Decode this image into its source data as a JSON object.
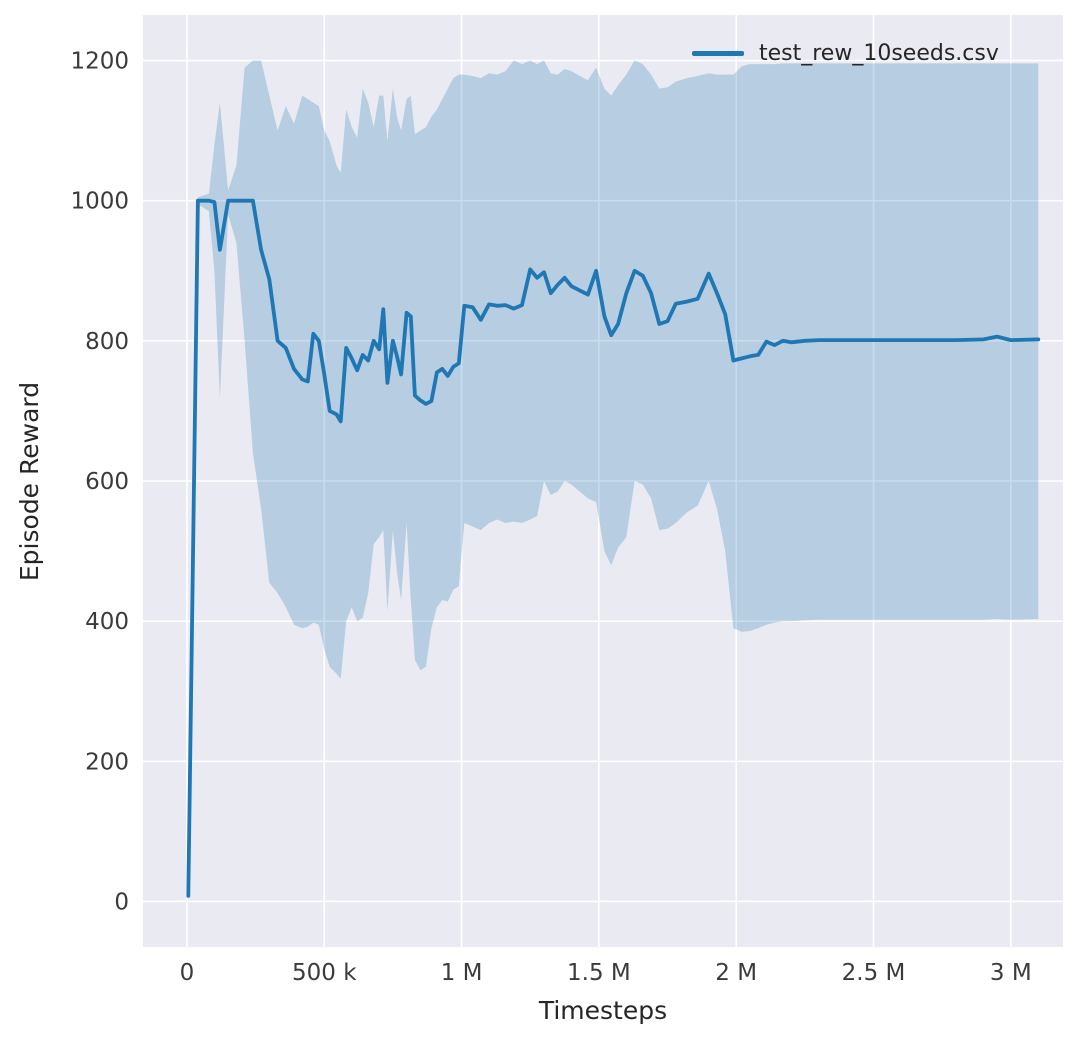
{
  "chart_data": {
    "type": "line",
    "title": "",
    "xlabel": "Timesteps",
    "ylabel": "Episode Reward",
    "grid": true,
    "legend": {
      "position": "upper right",
      "entries": [
        {
          "label": "test_rew_10seeds.csv",
          "color": "#1f77b4"
        }
      ]
    },
    "xlim": [
      -160000,
      3190000
    ],
    "ylim": [
      -65,
      1265
    ],
    "xticks": {
      "values": [
        0,
        500000,
        1000000,
        1500000,
        2000000,
        2500000,
        3000000
      ],
      "labels": [
        "0",
        "500 k",
        "1 M",
        "1.5 M",
        "2 M",
        "2.5 M",
        "3 M"
      ]
    },
    "yticks": {
      "values": [
        0,
        200,
        400,
        600,
        800,
        1000,
        1200
      ],
      "labels": [
        "0",
        "200",
        "400",
        "600",
        "800",
        "1000",
        "1200"
      ]
    },
    "colors": {
      "line": "#1f77b4",
      "band": "#1f77b4",
      "band_opacity": 0.25,
      "plot_background": "#eaeaf2",
      "grid": "#ffffff",
      "tick_text": "#3b3b3b",
      "label_text": "#262626"
    },
    "series": [
      {
        "name": "test_rew_10seeds.csv",
        "x": [
          5000,
          40000,
          80000,
          100000,
          120000,
          150000,
          180000,
          210000,
          240000,
          270000,
          300000,
          330000,
          360000,
          390000,
          420000,
          440000,
          460000,
          480000,
          500000,
          520000,
          545000,
          560000,
          580000,
          600000,
          620000,
          640000,
          660000,
          680000,
          700000,
          715000,
          730000,
          750000,
          765000,
          780000,
          800000,
          815000,
          830000,
          850000,
          870000,
          890000,
          910000,
          930000,
          950000,
          970000,
          990000,
          1010000,
          1040000,
          1070000,
          1100000,
          1130000,
          1160000,
          1190000,
          1220000,
          1250000,
          1275000,
          1300000,
          1325000,
          1350000,
          1375000,
          1400000,
          1430000,
          1460000,
          1490000,
          1520000,
          1545000,
          1570000,
          1600000,
          1630000,
          1660000,
          1690000,
          1720000,
          1750000,
          1780000,
          1820000,
          1860000,
          1900000,
          1930000,
          1960000,
          1990000,
          2020000,
          2050000,
          2080000,
          2110000,
          2140000,
          2170000,
          2200000,
          2250000,
          2300000,
          2400000,
          2500000,
          2600000,
          2700000,
          2800000,
          2900000,
          2950000,
          3000000,
          3100000
        ],
        "mean": [
          8,
          1000,
          1000,
          998,
          930,
          1000,
          1000,
          1000,
          1000,
          930,
          888,
          800,
          790,
          760,
          745,
          742,
          810,
          800,
          752,
          700,
          695,
          685,
          790,
          775,
          758,
          780,
          772,
          800,
          788,
          845,
          740,
          800,
          778,
          752,
          840,
          835,
          722,
          715,
          710,
          714,
          755,
          760,
          750,
          763,
          768,
          850,
          848,
          830,
          852,
          850,
          851,
          846,
          851,
          902,
          890,
          898,
          868,
          880,
          890,
          878,
          872,
          866,
          900,
          835,
          808,
          824,
          868,
          900,
          893,
          868,
          824,
          828,
          853,
          856,
          860,
          896,
          868,
          838,
          772,
          775,
          778,
          780,
          799,
          794,
          800,
          798,
          800,
          801,
          801,
          801,
          801,
          801,
          801,
          802,
          806,
          801,
          802
        ],
        "lower": [
          6,
          995,
          985,
          900,
          718,
          980,
          940,
          800,
          640,
          560,
          455,
          440,
          420,
          395,
          390,
          392,
          398,
          395,
          360,
          335,
          325,
          318,
          400,
          420,
          400,
          405,
          440,
          510,
          520,
          530,
          415,
          530,
          470,
          430,
          540,
          430,
          345,
          330,
          335,
          390,
          420,
          430,
          428,
          445,
          450,
          540,
          535,
          530,
          540,
          545,
          540,
          542,
          540,
          545,
          550,
          600,
          580,
          585,
          600,
          595,
          585,
          575,
          570,
          500,
          480,
          505,
          520,
          600,
          595,
          575,
          530,
          532,
          540,
          555,
          565,
          600,
          560,
          500,
          390,
          385,
          386,
          390,
          395,
          398,
          400,
          400,
          401,
          402,
          402,
          402,
          402,
          402,
          402,
          402,
          403,
          402,
          403
        ],
        "upper": [
          10,
          1005,
          1010,
          1080,
          1140,
          1015,
          1050,
          1190,
          1200,
          1200,
          1150,
          1100,
          1135,
          1110,
          1150,
          1145,
          1140,
          1135,
          1100,
          1085,
          1050,
          1040,
          1130,
          1105,
          1090,
          1160,
          1140,
          1105,
          1150,
          1150,
          1085,
          1160,
          1120,
          1100,
          1145,
          1150,
          1095,
          1100,
          1105,
          1120,
          1130,
          1145,
          1160,
          1175,
          1180,
          1180,
          1178,
          1175,
          1182,
          1180,
          1185,
          1200,
          1195,
          1200,
          1195,
          1200,
          1182,
          1180,
          1188,
          1185,
          1178,
          1172,
          1190,
          1160,
          1150,
          1165,
          1180,
          1200,
          1195,
          1180,
          1160,
          1162,
          1170,
          1175,
          1178,
          1182,
          1180,
          1180,
          1180,
          1192,
          1195,
          1195,
          1195,
          1195,
          1196,
          1196,
          1196,
          1196,
          1196,
          1196,
          1196,
          1196,
          1196,
          1196,
          1196,
          1196,
          1196
        ]
      }
    ]
  }
}
